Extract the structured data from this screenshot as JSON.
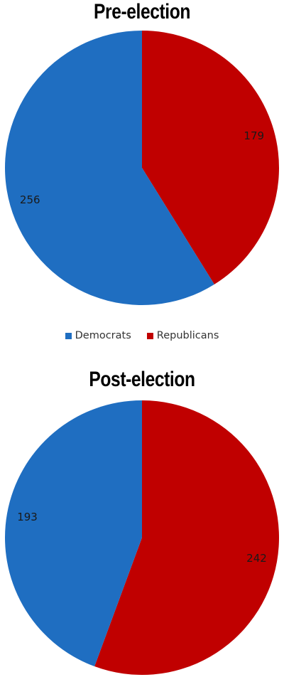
{
  "chart_data": [
    {
      "type": "pie",
      "title": "Pre-election",
      "slices": [
        {
          "label": "Republicans",
          "value": 179,
          "color": "#C00000"
        },
        {
          "label": "Democrats",
          "value": 256,
          "color": "#1F6EC1"
        }
      ]
    },
    {
      "type": "pie",
      "title": "Post-election",
      "slices": [
        {
          "label": "Republicans",
          "value": 242,
          "color": "#C00000"
        },
        {
          "label": "Democrats",
          "value": 193,
          "color": "#1F6EC1"
        }
      ]
    }
  ],
  "legend": {
    "items": [
      {
        "label": "Democrats",
        "color": "#1F6EC1"
      },
      {
        "label": "Republicans",
        "color": "#C00000"
      }
    ]
  }
}
